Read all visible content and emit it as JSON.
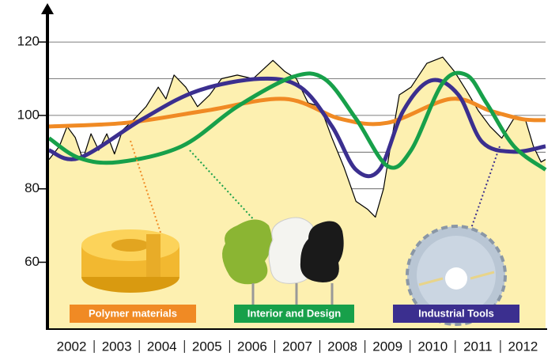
{
  "chart_data": {
    "type": "line",
    "categories": [
      "2002",
      "2003",
      "2004",
      "2005",
      "2006",
      "2007",
      "2008",
      "2009",
      "2010",
      "2011",
      "2012"
    ],
    "xlim": [
      2002,
      2013
    ],
    "xticks": [
      2003,
      2004,
      2005,
      2006,
      2007,
      2008,
      2009,
      2010,
      2011,
      2012
    ],
    "ylim": [
      42,
      128
    ],
    "yticks": [
      60,
      80,
      100,
      120
    ],
    "ygrid": [
      80,
      90,
      100,
      110,
      120
    ],
    "series": [
      {
        "color": "#000000",
        "area": "#fdf0b0",
        "x": [
          2002.0,
          2002.23,
          2002.4,
          2002.58,
          2002.75,
          2002.93,
          2003.1,
          2003.28,
          2003.45,
          2003.63,
          2003.89,
          2004.15,
          2004.42,
          2004.59,
          2004.77,
          2005.03,
          2005.29,
          2005.56,
          2005.82,
          2006.17,
          2006.52,
          2006.96,
          2007.22,
          2007.48,
          2007.74,
          2008.01,
          2008.27,
          2008.53,
          2008.8,
          2009.06,
          2009.23,
          2009.41,
          2009.58,
          2009.76,
          2010.02,
          2010.37,
          2010.72,
          2010.98,
          2011.25,
          2011.51,
          2011.77,
          2012.03,
          2012.29,
          2012.55,
          2012.73,
          2012.9,
          2013.0
        ],
        "values": [
          88,
          91.6,
          97,
          94,
          88,
          95,
          90.5,
          95,
          89.5,
          96,
          99,
          102.4,
          107.7,
          104.5,
          111,
          107.7,
          102.4,
          105.6,
          110,
          111,
          110,
          115,
          112,
          110,
          103.4,
          102.4,
          93.8,
          86,
          76.6,
          74.4,
          72.3,
          80,
          92.7,
          105.6,
          107.7,
          114.2,
          115.9,
          112,
          106.7,
          101.3,
          97,
          93.8,
          99,
          99,
          91.6,
          87.3,
          88
        ]
      },
      {
        "name": "Polymer materials",
        "color": "#f08a24",
        "smooth": true,
        "x": [
          2002,
          2003.72,
          2005.47,
          2007.22,
          2008.45,
          2009.5,
          2010.9,
          2011.77,
          2012.48,
          2013
        ],
        "values": [
          97,
          98,
          101.3,
          104.5,
          99.1,
          98,
          104.5,
          101.3,
          99,
          98.7
        ]
      },
      {
        "name": "Industrial Tools",
        "color": "#3b2f8f",
        "smooth": true,
        "x": [
          2002,
          2002.67,
          2004.07,
          2005.29,
          2006.69,
          2007.57,
          2008.27,
          2008.8,
          2009.32,
          2009.85,
          2010.46,
          2011.07,
          2011.6,
          2012.3,
          2013
        ],
        "values": [
          90.5,
          88.4,
          99,
          106.7,
          110,
          107.7,
          97,
          85.2,
          85.2,
          101.3,
          109.5,
          105.6,
          92.7,
          90.1,
          91.6
        ]
      },
      {
        "name": "Interior and Design",
        "color": "#17a04a",
        "smooth": true,
        "x": [
          2002,
          2002.67,
          2003.54,
          2004.94,
          2006.17,
          2007.4,
          2008.1,
          2008.8,
          2009.5,
          2010.02,
          2010.72,
          2011.25,
          2011.69,
          2012.3,
          2013
        ],
        "values": [
          93.8,
          88.4,
          87.3,
          91.6,
          102.4,
          110.5,
          110,
          99.1,
          86.2,
          90.5,
          108.8,
          111,
          103.4,
          91.6,
          85.2
        ]
      }
    ]
  }
}
